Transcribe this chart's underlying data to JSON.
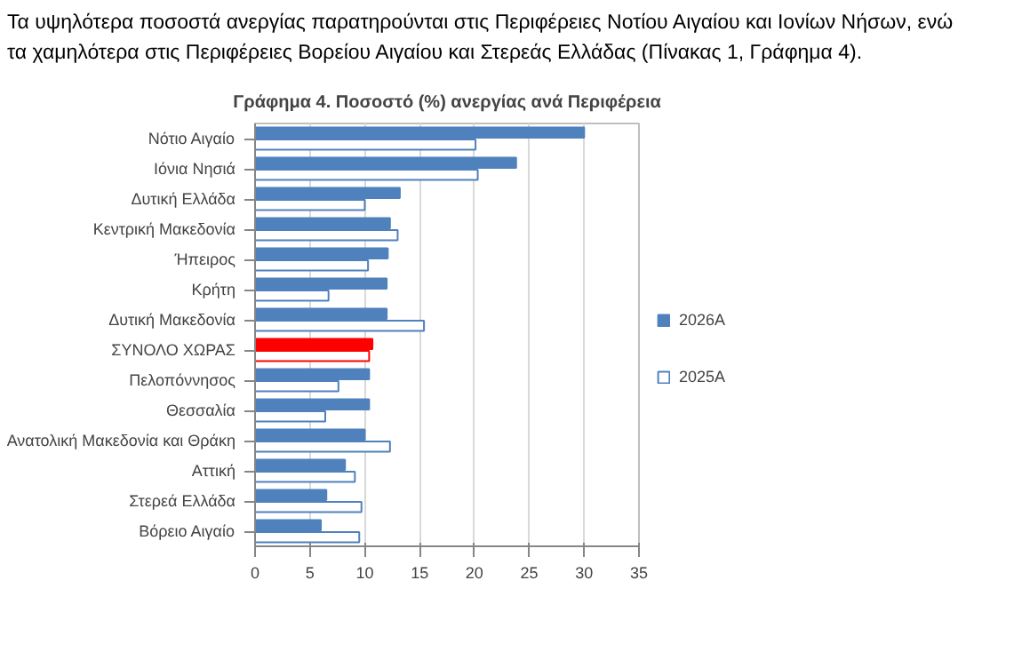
{
  "chart_data": {
    "type": "bar",
    "orientation": "horizontal",
    "title": "Γράφημα 4. Ποσοστό (%) ανεργίας ανά Περιφέρεια",
    "annotations": [
      "Τα υψηλότερα ποσοστά ανεργίας παρατηρούνται στις Περιφέρειες Νοτίου Αιγαίου και Ιονίων Νήσων, ενώ",
      "τα χαμηλότερα στις Περιφέρειες Βορείου Αιγαίου και Στερεάς Ελλάδας (Πίνακας 1, Γράφημα 4)."
    ],
    "categories": [
      "Νότιο Αιγαίο",
      "Ιόνια Νησιά",
      "Δυτική Ελλάδα",
      "Κεντρική Μακεδονία",
      "Ήπειρος",
      "Κρήτη",
      "Δυτική Μακεδονία",
      "ΣΥΝΟΛΟ ΧΩΡΑΣ",
      "Πελοπόννησος",
      "Θεσσαλία",
      "Ανατολική Μακεδονία και Θράκη",
      "Αττική",
      "Στερεά Ελλάδα",
      "Βόρειο Αιγαίο"
    ],
    "series": [
      {
        "name": "2026Α",
        "color": "#4f81bd",
        "colors": [
          "#4f81bd",
          "#4f81bd",
          "#4f81bd",
          "#4f81bd",
          "#4f81bd",
          "#4f81bd",
          "#4f81bd",
          "#ff0000",
          "#4f81bd",
          "#4f81bd",
          "#4f81bd",
          "#4f81bd",
          "#4f81bd",
          "#4f81bd"
        ],
        "values": [
          30.0,
          23.8,
          13.2,
          12.3,
          12.1,
          12.0,
          12.0,
          10.7,
          10.4,
          10.4,
          10.0,
          8.2,
          6.5,
          6.0
        ]
      },
      {
        "name": "2025Α",
        "color": "#4f81bd",
        "colors": [
          "#4f81bd",
          "#4f81bd",
          "#4f81bd",
          "#4f81bd",
          "#4f81bd",
          "#4f81bd",
          "#4f81bd",
          "#ff0000",
          "#4f81bd",
          "#4f81bd",
          "#4f81bd",
          "#4f81bd",
          "#4f81bd",
          "#4f81bd"
        ],
        "values": [
          20.1,
          20.3,
          10.0,
          13.0,
          10.3,
          6.7,
          15.4,
          10.4,
          7.6,
          6.4,
          12.3,
          9.1,
          9.7,
          9.5
        ]
      }
    ],
    "xlim": [
      0,
      35
    ],
    "xticks": [
      0,
      5,
      10,
      15,
      20,
      25,
      30,
      35
    ],
    "grid": "x",
    "legend": "right"
  }
}
